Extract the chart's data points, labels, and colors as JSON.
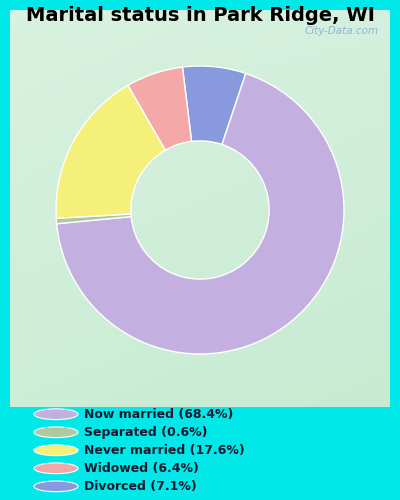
{
  "title": "Marital status in Park Ridge, WI",
  "slices": [
    7.1,
    68.4,
    0.6,
    17.6,
    6.4
  ],
  "colors": [
    "#8899dd",
    "#c4b0e0",
    "#b0c8a0",
    "#f5f07a",
    "#f5a8a8"
  ],
  "labels": [
    "Now married (68.4%)",
    "Separated (0.6%)",
    "Never married (17.6%)",
    "Widowed (6.4%)",
    "Divorced (7.1%)"
  ],
  "legend_colors": [
    "#c4b0e0",
    "#b0c8a0",
    "#f5f07a",
    "#f5a8a8",
    "#8899dd"
  ],
  "background_outer": "#00e8e8",
  "title_fontsize": 14,
  "watermark": "City-Data.com",
  "chart_bg_tl": [
    0.85,
    0.95,
    0.88
  ],
  "chart_bg_br": [
    0.78,
    0.92,
    0.82
  ],
  "startangle": 97,
  "donut_width": 0.52
}
